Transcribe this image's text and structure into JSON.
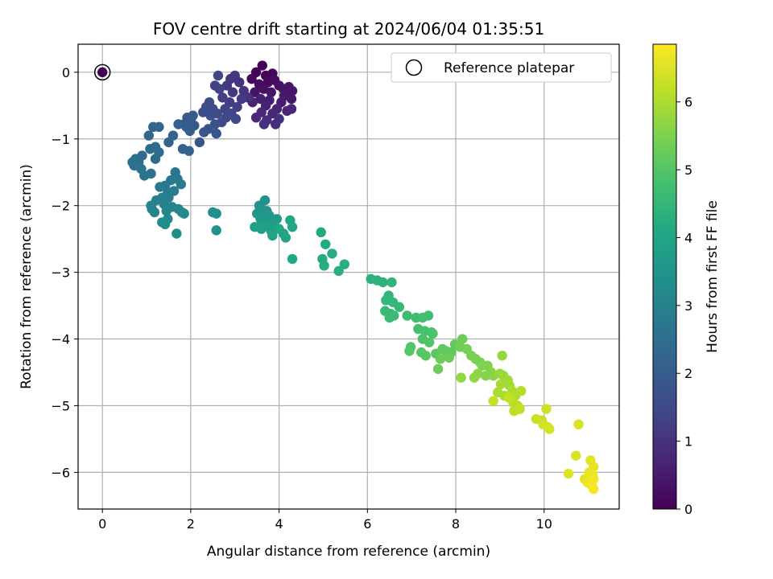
{
  "chart_data": {
    "type": "scatter",
    "title": "FOV centre drift starting at 2024/06/04 01:35:51",
    "xlabel": "Angular distance from reference (arcmin)",
    "ylabel": "Rotation from reference (arcmin)",
    "xlim": [
      -0.55,
      11.7
    ],
    "ylim": [
      -6.55,
      0.42
    ],
    "xticks": [
      0,
      2,
      4,
      6,
      8,
      10
    ],
    "yticks": [
      0,
      -1,
      -2,
      -3,
      -4,
      -5,
      -6
    ],
    "grid": true,
    "legend": {
      "position": "upper-right",
      "entries": [
        "Reference platepar"
      ]
    },
    "reference_point": {
      "x": 0,
      "y": 0,
      "marker": "open-circle"
    },
    "colorbar": {
      "label": "Hours from first FF file",
      "colormap": "viridis",
      "range": [
        0,
        6.85
      ],
      "ticks": [
        0,
        1,
        2,
        3,
        4,
        5,
        6
      ]
    },
    "series": [
      {
        "points": [
          [
            3.62,
            0.1
          ],
          [
            3.48,
            0.0
          ],
          [
            3.7,
            -0.05
          ],
          [
            3.85,
            -0.02
          ],
          [
            3.38,
            -0.1
          ],
          [
            3.75,
            -0.15
          ],
          [
            3.55,
            -0.18
          ],
          [
            3.9,
            -0.12
          ],
          [
            4.0,
            -0.2
          ],
          [
            3.65,
            -0.25
          ],
          [
            3.45,
            -0.3
          ],
          [
            3.82,
            -0.3
          ],
          [
            4.1,
            -0.25
          ],
          [
            4.22,
            -0.22
          ],
          [
            4.3,
            -0.28
          ],
          [
            4.12,
            -0.35
          ],
          [
            4.28,
            -0.4
          ],
          [
            4.05,
            -0.45
          ],
          [
            3.78,
            -0.42
          ],
          [
            3.58,
            -0.4
          ],
          [
            3.4,
            -0.45
          ],
          [
            3.7,
            -0.5
          ],
          [
            3.95,
            -0.55
          ],
          [
            4.18,
            -0.58
          ],
          [
            4.28,
            -0.55
          ],
          [
            3.85,
            -0.62
          ],
          [
            3.6,
            -0.6
          ],
          [
            3.48,
            -0.68
          ],
          [
            3.72,
            -0.72
          ],
          [
            3.92,
            -0.78
          ],
          [
            3.66,
            -0.78
          ],
          [
            4.0,
            -0.7
          ],
          [
            3.3,
            -0.38
          ],
          [
            3.2,
            -0.28
          ],
          [
            3.1,
            -0.15
          ],
          [
            3.0,
            -0.05
          ],
          [
            2.9,
            -0.1
          ],
          [
            2.82,
            -0.2
          ],
          [
            2.95,
            -0.3
          ],
          [
            3.15,
            -0.4
          ],
          [
            3.05,
            -0.52
          ],
          [
            2.88,
            -0.45
          ],
          [
            2.72,
            -0.38
          ],
          [
            2.65,
            -0.25
          ],
          [
            2.55,
            -0.2
          ],
          [
            2.62,
            -0.05
          ],
          [
            2.78,
            -0.55
          ],
          [
            2.92,
            -0.62
          ],
          [
            3.02,
            -0.7
          ],
          [
            2.8,
            -0.68
          ],
          [
            2.7,
            -0.75
          ],
          [
            2.6,
            -0.62
          ],
          [
            2.5,
            -0.55
          ],
          [
            2.42,
            -0.45
          ],
          [
            2.35,
            -0.52
          ],
          [
            2.28,
            -0.6
          ],
          [
            2.45,
            -0.65
          ],
          [
            2.55,
            -0.78
          ],
          [
            2.4,
            -0.85
          ],
          [
            2.58,
            -0.92
          ],
          [
            2.3,
            -0.9
          ],
          [
            2.2,
            -1.05
          ],
          [
            2.08,
            -0.8
          ],
          [
            2.0,
            -0.72
          ],
          [
            1.92,
            -0.68
          ],
          [
            2.05,
            -0.65
          ],
          [
            1.85,
            -0.78
          ],
          [
            1.98,
            -0.88
          ],
          [
            1.9,
            -0.82
          ],
          [
            1.72,
            -0.78
          ],
          [
            1.96,
            -1.18
          ],
          [
            1.82,
            -1.15
          ],
          [
            1.6,
            -0.95
          ],
          [
            1.5,
            -1.05
          ],
          [
            1.28,
            -0.82
          ],
          [
            1.15,
            -0.82
          ],
          [
            1.05,
            -0.95
          ],
          [
            1.08,
            -1.15
          ],
          [
            1.2,
            -1.12
          ],
          [
            1.28,
            -1.2
          ],
          [
            1.2,
            -1.3
          ],
          [
            0.9,
            -1.25
          ],
          [
            0.82,
            -1.35
          ],
          [
            0.75,
            -1.3
          ],
          [
            0.68,
            -1.35
          ],
          [
            0.72,
            -1.4
          ],
          [
            0.88,
            -1.45
          ],
          [
            0.95,
            -1.55
          ],
          [
            1.1,
            -1.52
          ],
          [
            1.65,
            -1.5
          ],
          [
            1.7,
            -1.6
          ],
          [
            1.55,
            -1.62
          ],
          [
            1.42,
            -1.7
          ],
          [
            1.3,
            -1.72
          ],
          [
            1.48,
            -1.8
          ],
          [
            1.62,
            -1.78
          ],
          [
            1.78,
            -1.68
          ],
          [
            1.5,
            -1.88
          ],
          [
            1.35,
            -1.88
          ],
          [
            1.22,
            -1.92
          ],
          [
            1.4,
            -1.98
          ],
          [
            1.58,
            -2.02
          ],
          [
            1.1,
            -2.0
          ],
          [
            1.12,
            -2.05
          ],
          [
            1.18,
            -2.1
          ],
          [
            1.45,
            -2.08
          ],
          [
            1.72,
            -2.05
          ],
          [
            1.8,
            -2.1
          ],
          [
            1.85,
            -2.12
          ],
          [
            1.48,
            -2.2
          ],
          [
            1.35,
            -2.25
          ],
          [
            1.42,
            -2.28
          ],
          [
            1.68,
            -2.42
          ],
          [
            2.5,
            -2.1
          ],
          [
            2.58,
            -2.12
          ],
          [
            2.58,
            -2.37
          ],
          [
            3.68,
            -1.92
          ],
          [
            3.55,
            -2.0
          ],
          [
            3.6,
            -2.05
          ],
          [
            3.72,
            -2.08
          ],
          [
            3.5,
            -2.12
          ],
          [
            3.65,
            -2.15
          ],
          [
            3.78,
            -2.15
          ],
          [
            3.58,
            -2.2
          ],
          [
            3.7,
            -2.25
          ],
          [
            3.95,
            -2.2
          ],
          [
            3.88,
            -2.28
          ],
          [
            3.45,
            -2.32
          ],
          [
            3.6,
            -2.35
          ],
          [
            3.75,
            -2.3
          ],
          [
            3.82,
            -2.38
          ],
          [
            3.55,
            -2.32
          ],
          [
            3.85,
            -2.45
          ],
          [
            4.1,
            -2.42
          ],
          [
            4.15,
            -2.48
          ],
          [
            4.25,
            -2.22
          ],
          [
            4.3,
            -2.32
          ],
          [
            4.0,
            -2.35
          ],
          [
            4.3,
            -2.8
          ],
          [
            4.95,
            -2.4
          ],
          [
            5.05,
            -2.58
          ],
          [
            5.2,
            -2.72
          ],
          [
            4.98,
            -2.8
          ],
          [
            5.02,
            -2.9
          ],
          [
            5.48,
            -2.88
          ],
          [
            5.35,
            -2.98
          ],
          [
            6.08,
            -3.1
          ],
          [
            6.22,
            -3.12
          ],
          [
            6.35,
            -3.15
          ],
          [
            6.55,
            -3.15
          ],
          [
            6.48,
            -3.35
          ],
          [
            6.42,
            -3.42
          ],
          [
            6.58,
            -3.45
          ],
          [
            6.72,
            -3.52
          ],
          [
            6.4,
            -3.58
          ],
          [
            6.52,
            -3.62
          ],
          [
            6.6,
            -3.65
          ],
          [
            6.5,
            -3.68
          ],
          [
            6.9,
            -3.65
          ],
          [
            7.1,
            -3.68
          ],
          [
            7.25,
            -3.68
          ],
          [
            7.38,
            -3.65
          ],
          [
            7.15,
            -3.85
          ],
          [
            7.3,
            -3.88
          ],
          [
            7.45,
            -3.9
          ],
          [
            7.48,
            -3.92
          ],
          [
            7.25,
            -4.0
          ],
          [
            7.4,
            -4.05
          ],
          [
            6.98,
            -4.12
          ],
          [
            6.95,
            -4.18
          ],
          [
            7.22,
            -4.2
          ],
          [
            7.32,
            -4.25
          ],
          [
            7.55,
            -4.22
          ],
          [
            7.7,
            -4.15
          ],
          [
            7.78,
            -4.18
          ],
          [
            7.9,
            -4.2
          ],
          [
            7.98,
            -4.08
          ],
          [
            7.85,
            -4.28
          ],
          [
            7.65,
            -4.3
          ],
          [
            7.6,
            -4.45
          ],
          [
            8.15,
            -4.0
          ],
          [
            8.1,
            -4.12
          ],
          [
            8.25,
            -4.15
          ],
          [
            8.35,
            -4.25
          ],
          [
            8.45,
            -4.3
          ],
          [
            8.55,
            -4.35
          ],
          [
            8.6,
            -4.4
          ],
          [
            8.72,
            -4.4
          ],
          [
            8.8,
            -4.5
          ],
          [
            8.68,
            -4.55
          ],
          [
            8.85,
            -4.55
          ],
          [
            8.5,
            -4.52
          ],
          [
            8.42,
            -4.58
          ],
          [
            8.12,
            -4.58
          ],
          [
            9.05,
            -4.25
          ],
          [
            9.0,
            -4.52
          ],
          [
            9.08,
            -4.55
          ],
          [
            9.12,
            -4.6
          ],
          [
            9.18,
            -4.62
          ],
          [
            9.22,
            -4.7
          ],
          [
            9.02,
            -4.68
          ],
          [
            8.95,
            -4.8
          ],
          [
            9.1,
            -4.85
          ],
          [
            9.28,
            -4.78
          ],
          [
            9.35,
            -4.85
          ],
          [
            9.48,
            -4.78
          ],
          [
            9.3,
            -4.95
          ],
          [
            9.4,
            -5.0
          ],
          [
            9.32,
            -5.08
          ],
          [
            9.45,
            -5.05
          ],
          [
            9.2,
            -4.88
          ],
          [
            8.85,
            -4.93
          ],
          [
            9.82,
            -5.2
          ],
          [
            9.95,
            -5.22
          ],
          [
            10.05,
            -5.05
          ],
          [
            9.98,
            -5.28
          ],
          [
            10.08,
            -5.32
          ],
          [
            10.12,
            -5.35
          ],
          [
            10.78,
            -5.28
          ],
          [
            10.72,
            -5.75
          ],
          [
            10.55,
            -6.02
          ],
          [
            10.92,
            -6.1
          ],
          [
            11.05,
            -5.82
          ],
          [
            11.12,
            -5.92
          ],
          [
            11.02,
            -6.0
          ],
          [
            11.1,
            -6.05
          ],
          [
            10.98,
            -6.15
          ],
          [
            11.12,
            -6.1
          ],
          [
            11.08,
            -6.2
          ],
          [
            11.12,
            -6.25
          ]
        ]
      }
    ]
  }
}
